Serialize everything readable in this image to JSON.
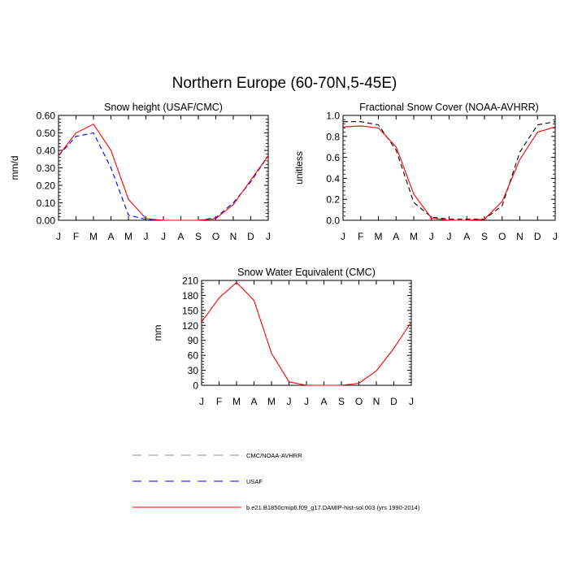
{
  "figure_title": "Northern Europe (60-70N,5-45E)",
  "colors": {
    "model": "#ff0000",
    "usaf": "#0000ff",
    "obs": "#000000",
    "legend_gray": "#888888"
  },
  "legend": [
    {
      "label": "CMC/NOAA-AVHRR",
      "style": "dashed",
      "color": "#888888"
    },
    {
      "label": "USAF",
      "style": "dashed",
      "color": "#0000ff"
    },
    {
      "label": "b.e21.B1850cmip6.f09_g17.DAMIP-hist-sol.003 (yrs 1990-2014)",
      "style": "solid",
      "color": "#ff0000"
    }
  ],
  "chart_data": [
    {
      "type": "line",
      "title": "Snow height (USAF/CMC)",
      "xlabel": "",
      "ylabel": "mm/d",
      "categories": [
        "J",
        "F",
        "M",
        "A",
        "M",
        "J",
        "J",
        "A",
        "S",
        "O",
        "N",
        "D",
        "J"
      ],
      "ylim": [
        0,
        0.6
      ],
      "yticks": [
        0,
        0.1,
        0.2,
        0.3,
        0.4,
        0.5,
        0.6
      ],
      "ytick_labels": [
        "0.00",
        "0.10",
        "0.20",
        "0.30",
        "0.40",
        "0.50",
        "0.60"
      ],
      "series": [
        {
          "name": "USAF",
          "style": "dashed",
          "color": "#0000ff",
          "values": [
            0.37,
            0.48,
            0.5,
            0.3,
            0.03,
            0.005,
            0.0,
            0.0,
            0.0,
            0.015,
            0.1,
            0.22,
            0.37
          ]
        },
        {
          "name": "b.e21.B1850cmip6.f09_g17.DAMIP-hist-sol.003 (yrs 1990-2014)",
          "style": "solid",
          "color": "#ff0000",
          "values": [
            0.37,
            0.5,
            0.55,
            0.4,
            0.12,
            0.01,
            0.0,
            0.0,
            0.0,
            0.01,
            0.09,
            0.23,
            0.37
          ]
        }
      ],
      "grid": false
    },
    {
      "type": "line",
      "title": "Fractional Snow Cover (NOAA-AVHRR)",
      "xlabel": "",
      "ylabel": "unitless",
      "categories": [
        "J",
        "F",
        "M",
        "A",
        "M",
        "J",
        "J",
        "A",
        "S",
        "O",
        "N",
        "D",
        "J"
      ],
      "ylim": [
        0,
        1.0
      ],
      "yticks": [
        0,
        0.2,
        0.4,
        0.6,
        0.8,
        1.0
      ],
      "ytick_labels": [
        "0.0",
        "0.2",
        "0.4",
        "0.6",
        "0.8",
        "1.0"
      ],
      "series": [
        {
          "name": "CMC/NOAA-AVHRR",
          "style": "dashed",
          "color": "#000000",
          "values": [
            0.94,
            0.94,
            0.91,
            0.67,
            0.17,
            0.03,
            0.01,
            0.01,
            0.01,
            0.14,
            0.65,
            0.91,
            0.94
          ]
        },
        {
          "name": "b.e21.B1850cmip6.f09_g17.DAMIP-hist-sol.003 (yrs 1990-2014)",
          "style": "solid",
          "color": "#ff0000",
          "values": [
            0.89,
            0.9,
            0.88,
            0.7,
            0.25,
            0.02,
            0.0,
            0.0,
            0.01,
            0.18,
            0.58,
            0.84,
            0.89
          ]
        }
      ],
      "grid": false
    },
    {
      "type": "line",
      "title": "Snow Water Equivalent (CMC)",
      "xlabel": "",
      "ylabel": "mm",
      "categories": [
        "J",
        "F",
        "M",
        "A",
        "M",
        "J",
        "J",
        "A",
        "S",
        "O",
        "N",
        "D",
        "J"
      ],
      "ylim": [
        0,
        210
      ],
      "yticks": [
        0,
        30,
        60,
        90,
        120,
        150,
        180,
        210
      ],
      "ytick_labels": [
        "0",
        "30",
        "60",
        "90",
        "120",
        "150",
        "180",
        "210"
      ],
      "series": [
        {
          "name": "b.e21.B1850cmip6.f09_g17.DAMIP-hist-sol.003 (yrs 1990-2014)",
          "style": "solid",
          "color": "#ff0000",
          "values": [
            127,
            175,
            206,
            170,
            64,
            7,
            0,
            0,
            0,
            4,
            29,
            74,
            127
          ]
        }
      ],
      "grid": false
    }
  ]
}
